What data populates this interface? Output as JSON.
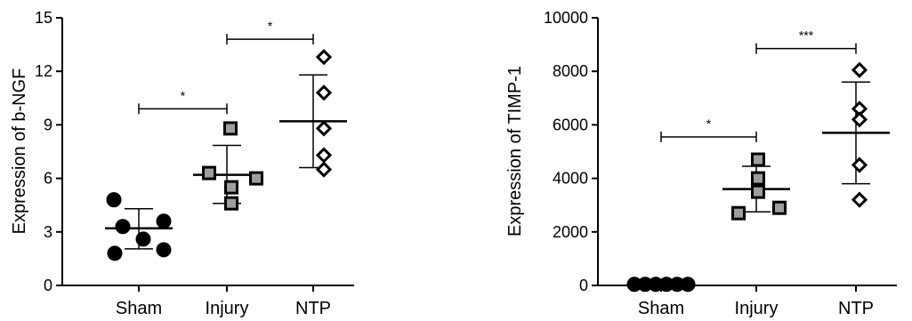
{
  "chart_data": [
    {
      "type": "scatter",
      "ylabel": "Expression of b-NGF",
      "ylim": [
        0,
        15
      ],
      "yticks": [
        "0",
        "3",
        "6",
        "9",
        "12",
        "15"
      ],
      "categories": [
        "Sham",
        "Injury",
        "NTP"
      ],
      "groups": [
        {
          "category": "Sham",
          "marker": "circle",
          "fill": "#000000",
          "points": [
            3.3,
            4.8,
            2.6,
            3.6,
            1.8,
            2.0
          ],
          "mean": 3.2,
          "sd_low": 2.05,
          "sd_high": 4.3
        },
        {
          "category": "Injury",
          "marker": "square",
          "fill": "#9e9e9e",
          "points": [
            8.8,
            6.3,
            5.5,
            6.0,
            4.6
          ],
          "mean": 6.2,
          "sd_low": 4.6,
          "sd_high": 7.85
        },
        {
          "category": "NTP",
          "marker": "diamond",
          "fill": "#ffffff",
          "points": [
            12.8,
            10.8,
            8.8,
            7.3,
            6.5
          ],
          "mean": 9.2,
          "sd_low": 6.6,
          "sd_high": 11.8
        }
      ],
      "significance": [
        {
          "from": "Sham",
          "to": "Injury",
          "label": "*",
          "y": 9.9
        },
        {
          "from": "Injury",
          "to": "NTP",
          "label": "*",
          "y": 13.8
        }
      ]
    },
    {
      "type": "scatter",
      "ylabel": "Expression of TIMP-1",
      "ylim": [
        0,
        10000
      ],
      "yticks": [
        "0",
        "2000",
        "4000",
        "6000",
        "8000",
        "10000"
      ],
      "categories": [
        "Sham",
        "Injury",
        "NTP"
      ],
      "groups": [
        {
          "category": "Sham",
          "marker": "circle",
          "fill": "#000000",
          "points": [
            40,
            40,
            40,
            40,
            40,
            40
          ],
          "mean": 40,
          "sd_low": 20,
          "sd_high": 60
        },
        {
          "category": "Injury",
          "marker": "square",
          "fill": "#9e9e9e",
          "points": [
            4700,
            4000,
            3500,
            2700,
            2900
          ],
          "mean": 3600,
          "sd_low": 2750,
          "sd_high": 4450
        },
        {
          "category": "NTP",
          "marker": "diamond",
          "fill": "#ffffff",
          "points": [
            8050,
            6600,
            6200,
            4500,
            3200
          ],
          "mean": 5700,
          "sd_low": 3800,
          "sd_high": 7600
        }
      ],
      "significance": [
        {
          "from": "Sham",
          "to": "Injury",
          "label": "*",
          "y": 5550
        },
        {
          "from": "Injury",
          "to": "NTP",
          "label": "***",
          "y": 8850
        }
      ]
    }
  ]
}
